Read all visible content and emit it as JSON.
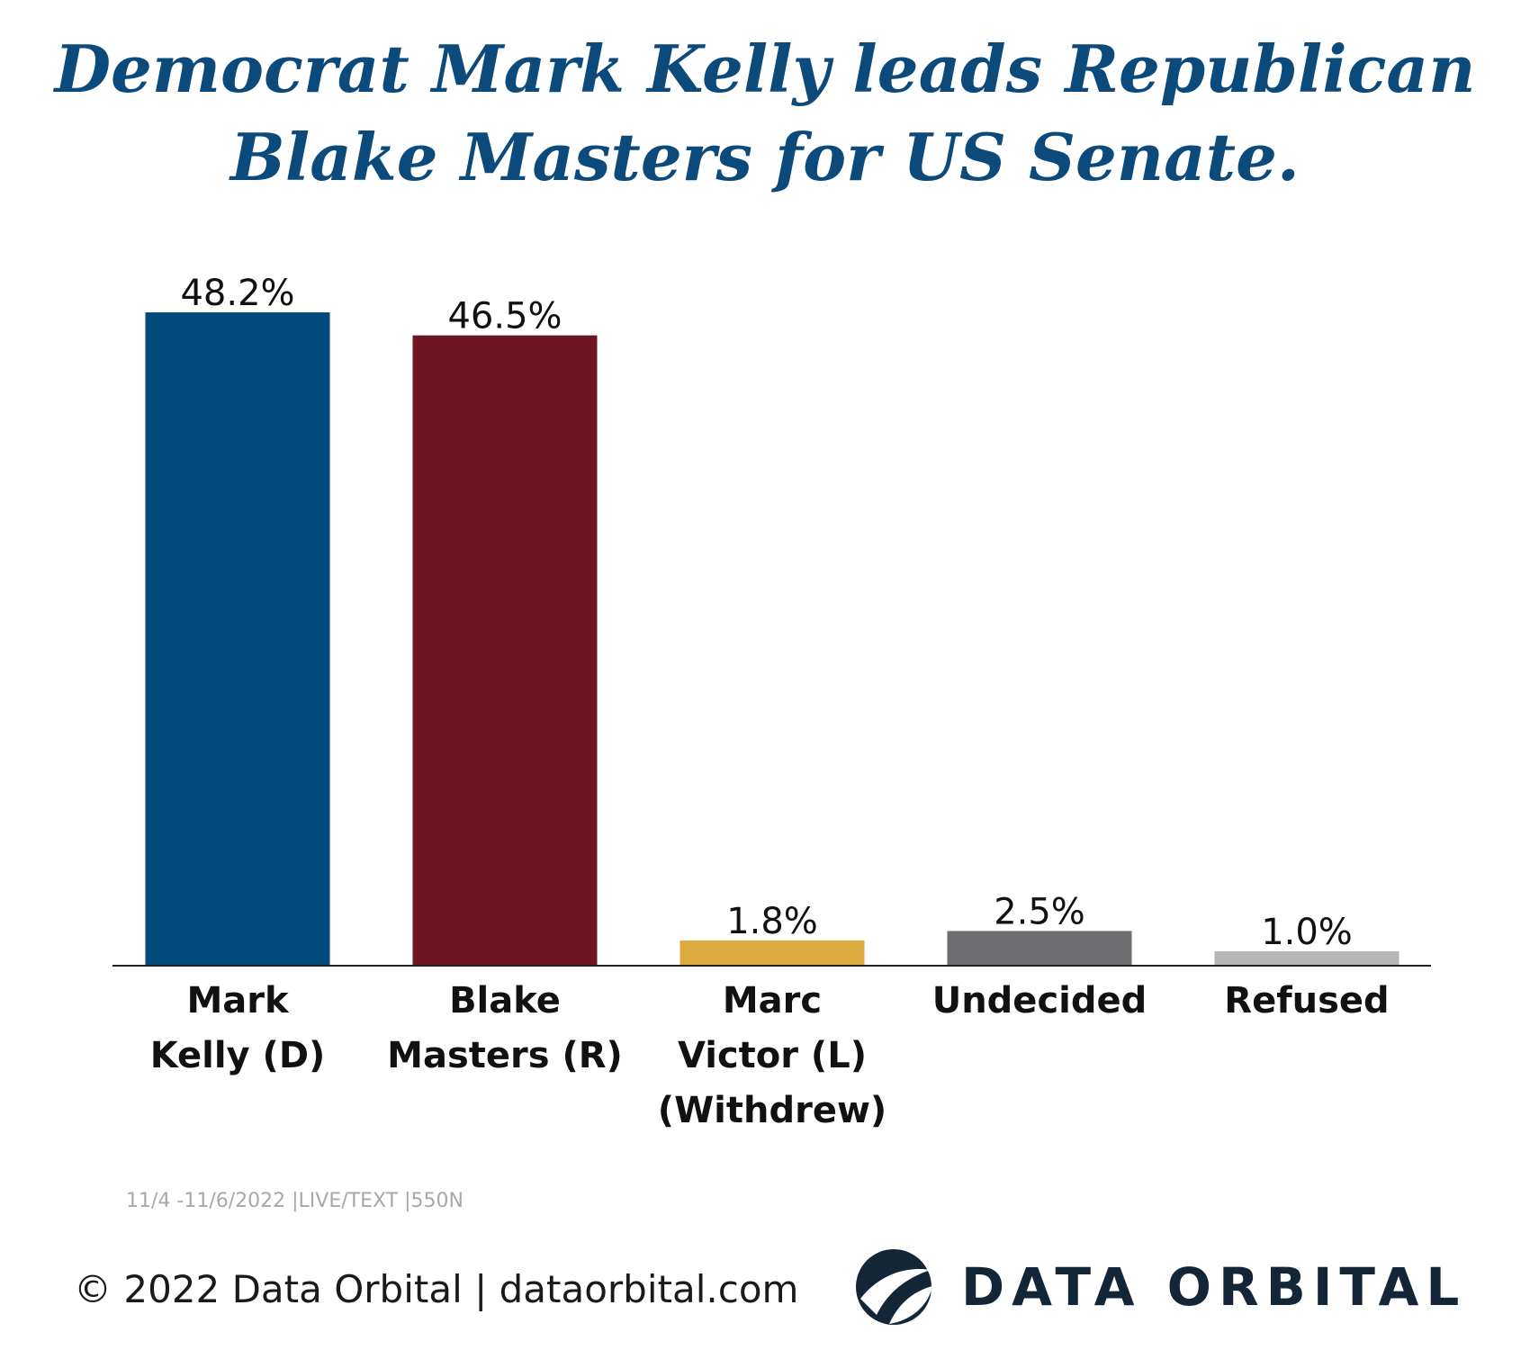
{
  "header": {
    "title_line1": "Democrat Mark Kelly leads Republican",
    "title_line2": "Blake Masters for US Senate."
  },
  "chart_data": {
    "type": "bar",
    "title": "Democrat Mark Kelly leads Republican Blake Masters for US Senate.",
    "categories": [
      [
        "Mark",
        "Kelly (D)"
      ],
      [
        "Blake",
        "Masters (R)"
      ],
      [
        "Marc",
        "Victor (L)",
        "(Withdrew)"
      ],
      [
        "Undecided"
      ],
      [
        "Refused"
      ]
    ],
    "values": [
      48.2,
      46.5,
      1.8,
      2.5,
      1.0
    ],
    "value_labels": [
      "48.2%",
      "46.5%",
      "1.8%",
      "2.5%",
      "1.0%"
    ],
    "colors": [
      "#004a7c",
      "#6d1520",
      "#dcab40",
      "#6e6e70",
      "#b6b6b6"
    ],
    "xlabel": "",
    "ylabel": "",
    "ylim": [
      0,
      50
    ],
    "grid": false
  },
  "footer": {
    "footnote": "11/4 -11/6/2022 |LIVE/TEXT |550N",
    "copyright": "© 2022 Data Orbital | dataorbital.com",
    "logo_text": "DATA ORBITAL",
    "logo_icon": "orbital-globe-icon"
  }
}
